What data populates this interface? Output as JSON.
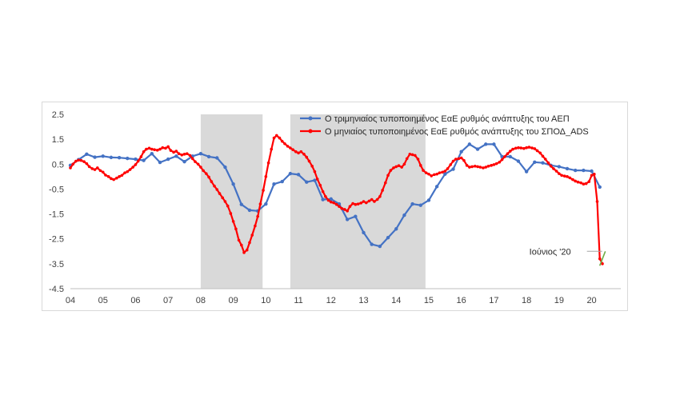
{
  "chart_data": {
    "type": "line",
    "title": "",
    "xlabel": "",
    "ylabel": "",
    "x_tick_labels": [
      "04",
      "05",
      "06",
      "07",
      "08",
      "09",
      "10",
      "11",
      "12",
      "13",
      "14",
      "15",
      "16",
      "17",
      "18",
      "19",
      "20"
    ],
    "y_tick_labels": [
      "2.5",
      "1.5",
      "0.5",
      "-0.5",
      "-1.5",
      "-2.5",
      "-3.5",
      "-4.5"
    ],
    "ylim": [
      -4.5,
      2.5
    ],
    "xlim": [
      2004.0,
      2020.6
    ],
    "grid": false,
    "legend_position": "top-right",
    "shaded_periods": [
      [
        2008.0,
        2009.9
      ],
      [
        2010.75,
        2014.9
      ]
    ],
    "shade_color": "#d9d9d9",
    "series": [
      {
        "name": "Ο τριμηνιαίος τυποποιημένος ΕαΕ ρυθμός ανάπτυξης του ΑΕΠ",
        "color": "#4472c4",
        "points": [
          [
            2004.0,
            0.45
          ],
          [
            2004.25,
            0.68
          ],
          [
            2004.5,
            0.9
          ],
          [
            2004.75,
            0.78
          ],
          [
            2005.0,
            0.82
          ],
          [
            2005.25,
            0.77
          ],
          [
            2005.5,
            0.76
          ],
          [
            2005.75,
            0.73
          ],
          [
            2006.0,
            0.7
          ],
          [
            2006.25,
            0.65
          ],
          [
            2006.5,
            0.92
          ],
          [
            2006.75,
            0.57
          ],
          [
            2007.0,
            0.7
          ],
          [
            2007.25,
            0.82
          ],
          [
            2007.5,
            0.6
          ],
          [
            2007.75,
            0.82
          ],
          [
            2008.0,
            0.92
          ],
          [
            2008.25,
            0.8
          ],
          [
            2008.5,
            0.75
          ],
          [
            2008.75,
            0.38
          ],
          [
            2009.0,
            -0.3
          ],
          [
            2009.25,
            -1.12
          ],
          [
            2009.5,
            -1.35
          ],
          [
            2009.75,
            -1.38
          ],
          [
            2010.0,
            -1.1
          ],
          [
            2010.25,
            -0.3
          ],
          [
            2010.5,
            -0.2
          ],
          [
            2010.75,
            0.12
          ],
          [
            2011.0,
            0.08
          ],
          [
            2011.25,
            -0.22
          ],
          [
            2011.5,
            -0.15
          ],
          [
            2011.75,
            -0.92
          ],
          [
            2012.0,
            -0.9
          ],
          [
            2012.25,
            -1.1
          ],
          [
            2012.5,
            -1.72
          ],
          [
            2012.75,
            -1.6
          ],
          [
            2013.0,
            -2.25
          ],
          [
            2013.25,
            -2.72
          ],
          [
            2013.5,
            -2.8
          ],
          [
            2013.75,
            -2.45
          ],
          [
            2014.0,
            -2.1
          ],
          [
            2014.25,
            -1.55
          ],
          [
            2014.5,
            -1.1
          ],
          [
            2014.75,
            -1.15
          ],
          [
            2015.0,
            -0.95
          ],
          [
            2015.25,
            -0.4
          ],
          [
            2015.5,
            0.1
          ],
          [
            2015.75,
            0.3
          ],
          [
            2016.0,
            1.0
          ],
          [
            2016.25,
            1.3
          ],
          [
            2016.5,
            1.1
          ],
          [
            2016.75,
            1.3
          ],
          [
            2017.0,
            1.3
          ],
          [
            2017.25,
            0.8
          ],
          [
            2017.5,
            0.8
          ],
          [
            2017.75,
            0.62
          ],
          [
            2018.0,
            0.2
          ],
          [
            2018.25,
            0.58
          ],
          [
            2018.5,
            0.55
          ],
          [
            2018.75,
            0.45
          ],
          [
            2019.0,
            0.4
          ],
          [
            2019.25,
            0.32
          ],
          [
            2019.5,
            0.25
          ],
          [
            2019.75,
            0.25
          ],
          [
            2020.0,
            0.22
          ],
          [
            2020.25,
            -0.42
          ]
        ]
      },
      {
        "name": "Ο μηνιαίος τυποποιημένος ΕαΕ ρυθμός ανάπτυξης του ΣΠΟΔ_ADS",
        "color": "#ff0000",
        "points": [
          [
            2004.0,
            0.35
          ],
          [
            2004.08,
            0.5
          ],
          [
            2004.17,
            0.62
          ],
          [
            2004.25,
            0.66
          ],
          [
            2004.33,
            0.65
          ],
          [
            2004.42,
            0.6
          ],
          [
            2004.5,
            0.52
          ],
          [
            2004.58,
            0.4
          ],
          [
            2004.67,
            0.32
          ],
          [
            2004.75,
            0.28
          ],
          [
            2004.83,
            0.35
          ],
          [
            2004.92,
            0.24
          ],
          [
            2005.0,
            0.18
          ],
          [
            2005.08,
            0.06
          ],
          [
            2005.17,
            0.0
          ],
          [
            2005.25,
            -0.08
          ],
          [
            2005.33,
            -0.12
          ],
          [
            2005.42,
            -0.06
          ],
          [
            2005.5,
            0.0
          ],
          [
            2005.58,
            0.05
          ],
          [
            2005.67,
            0.15
          ],
          [
            2005.75,
            0.2
          ],
          [
            2005.83,
            0.28
          ],
          [
            2005.92,
            0.38
          ],
          [
            2006.0,
            0.48
          ],
          [
            2006.08,
            0.62
          ],
          [
            2006.17,
            0.8
          ],
          [
            2006.25,
            1.0
          ],
          [
            2006.33,
            1.1
          ],
          [
            2006.42,
            1.14
          ],
          [
            2006.5,
            1.1
          ],
          [
            2006.58,
            1.08
          ],
          [
            2006.67,
            1.06
          ],
          [
            2006.75,
            1.1
          ],
          [
            2006.83,
            1.16
          ],
          [
            2006.92,
            1.14
          ],
          [
            2007.0,
            1.2
          ],
          [
            2007.08,
            1.05
          ],
          [
            2007.17,
            0.98
          ],
          [
            2007.25,
            1.02
          ],
          [
            2007.33,
            0.92
          ],
          [
            2007.42,
            0.87
          ],
          [
            2007.5,
            0.9
          ],
          [
            2007.58,
            0.92
          ],
          [
            2007.67,
            0.85
          ],
          [
            2007.75,
            0.72
          ],
          [
            2007.83,
            0.6
          ],
          [
            2007.92,
            0.5
          ],
          [
            2008.0,
            0.38
          ],
          [
            2008.08,
            0.24
          ],
          [
            2008.17,
            0.12
          ],
          [
            2008.25,
            -0.02
          ],
          [
            2008.33,
            -0.2
          ],
          [
            2008.42,
            -0.38
          ],
          [
            2008.5,
            -0.52
          ],
          [
            2008.58,
            -0.68
          ],
          [
            2008.67,
            -0.85
          ],
          [
            2008.75,
            -1.0
          ],
          [
            2008.83,
            -1.18
          ],
          [
            2008.92,
            -1.48
          ],
          [
            2009.0,
            -1.8
          ],
          [
            2009.08,
            -2.1
          ],
          [
            2009.17,
            -2.55
          ],
          [
            2009.25,
            -2.75
          ],
          [
            2009.33,
            -3.05
          ],
          [
            2009.42,
            -2.95
          ],
          [
            2009.5,
            -2.65
          ],
          [
            2009.58,
            -2.35
          ],
          [
            2009.67,
            -1.98
          ],
          [
            2009.75,
            -1.6
          ],
          [
            2009.83,
            -1.1
          ],
          [
            2009.92,
            -0.55
          ],
          [
            2010.0,
            0.0
          ],
          [
            2010.08,
            0.55
          ],
          [
            2010.17,
            1.1
          ],
          [
            2010.25,
            1.55
          ],
          [
            2010.33,
            1.65
          ],
          [
            2010.42,
            1.55
          ],
          [
            2010.5,
            1.42
          ],
          [
            2010.58,
            1.32
          ],
          [
            2010.67,
            1.22
          ],
          [
            2010.75,
            1.15
          ],
          [
            2010.83,
            1.08
          ],
          [
            2010.92,
            1.0
          ],
          [
            2011.0,
            0.95
          ],
          [
            2011.08,
            1.0
          ],
          [
            2011.17,
            0.9
          ],
          [
            2011.25,
            0.78
          ],
          [
            2011.33,
            0.62
          ],
          [
            2011.42,
            0.42
          ],
          [
            2011.5,
            0.2
          ],
          [
            2011.58,
            -0.1
          ],
          [
            2011.67,
            -0.35
          ],
          [
            2011.75,
            -0.6
          ],
          [
            2011.83,
            -0.8
          ],
          [
            2011.92,
            -0.95
          ],
          [
            2012.0,
            -1.02
          ],
          [
            2012.08,
            -1.05
          ],
          [
            2012.17,
            -1.12
          ],
          [
            2012.25,
            -1.2
          ],
          [
            2012.33,
            -1.28
          ],
          [
            2012.42,
            -1.32
          ],
          [
            2012.5,
            -1.38
          ],
          [
            2012.58,
            -1.2
          ],
          [
            2012.67,
            -1.08
          ],
          [
            2012.75,
            -1.12
          ],
          [
            2012.83,
            -1.1
          ],
          [
            2012.92,
            -1.06
          ],
          [
            2013.0,
            -1.0
          ],
          [
            2013.08,
            -1.05
          ],
          [
            2013.17,
            -0.98
          ],
          [
            2013.25,
            -0.92
          ],
          [
            2013.33,
            -1.0
          ],
          [
            2013.42,
            -0.92
          ],
          [
            2013.5,
            -0.8
          ],
          [
            2013.58,
            -0.55
          ],
          [
            2013.67,
            -0.25
          ],
          [
            2013.75,
            0.05
          ],
          [
            2013.83,
            0.25
          ],
          [
            2013.92,
            0.35
          ],
          [
            2014.0,
            0.4
          ],
          [
            2014.08,
            0.44
          ],
          [
            2014.17,
            0.38
          ],
          [
            2014.25,
            0.5
          ],
          [
            2014.33,
            0.72
          ],
          [
            2014.42,
            0.9
          ],
          [
            2014.5,
            0.88
          ],
          [
            2014.58,
            0.85
          ],
          [
            2014.67,
            0.7
          ],
          [
            2014.75,
            0.45
          ],
          [
            2014.83,
            0.25
          ],
          [
            2014.92,
            0.15
          ],
          [
            2015.0,
            0.1
          ],
          [
            2015.08,
            0.03
          ],
          [
            2015.17,
            0.08
          ],
          [
            2015.25,
            0.1
          ],
          [
            2015.33,
            0.15
          ],
          [
            2015.42,
            0.18
          ],
          [
            2015.5,
            0.22
          ],
          [
            2015.58,
            0.32
          ],
          [
            2015.67,
            0.48
          ],
          [
            2015.75,
            0.62
          ],
          [
            2015.83,
            0.7
          ],
          [
            2015.92,
            0.72
          ],
          [
            2016.0,
            0.75
          ],
          [
            2016.08,
            0.65
          ],
          [
            2016.17,
            0.45
          ],
          [
            2016.25,
            0.38
          ],
          [
            2016.33,
            0.4
          ],
          [
            2016.42,
            0.42
          ],
          [
            2016.5,
            0.4
          ],
          [
            2016.58,
            0.38
          ],
          [
            2016.67,
            0.35
          ],
          [
            2016.75,
            0.38
          ],
          [
            2016.83,
            0.42
          ],
          [
            2016.92,
            0.45
          ],
          [
            2017.0,
            0.48
          ],
          [
            2017.08,
            0.52
          ],
          [
            2017.17,
            0.58
          ],
          [
            2017.25,
            0.68
          ],
          [
            2017.33,
            0.8
          ],
          [
            2017.42,
            0.92
          ],
          [
            2017.5,
            1.02
          ],
          [
            2017.58,
            1.1
          ],
          [
            2017.67,
            1.14
          ],
          [
            2017.75,
            1.16
          ],
          [
            2017.83,
            1.15
          ],
          [
            2017.92,
            1.13
          ],
          [
            2018.0,
            1.16
          ],
          [
            2018.08,
            1.18
          ],
          [
            2018.17,
            1.15
          ],
          [
            2018.25,
            1.12
          ],
          [
            2018.33,
            1.04
          ],
          [
            2018.42,
            0.95
          ],
          [
            2018.5,
            0.82
          ],
          [
            2018.58,
            0.7
          ],
          [
            2018.67,
            0.55
          ],
          [
            2018.75,
            0.42
          ],
          [
            2018.83,
            0.32
          ],
          [
            2018.92,
            0.22
          ],
          [
            2019.0,
            0.12
          ],
          [
            2019.08,
            0.05
          ],
          [
            2019.17,
            0.02
          ],
          [
            2019.25,
            0.0
          ],
          [
            2019.33,
            -0.05
          ],
          [
            2019.42,
            -0.12
          ],
          [
            2019.5,
            -0.18
          ],
          [
            2019.58,
            -0.22
          ],
          [
            2019.67,
            -0.25
          ],
          [
            2019.75,
            -0.3
          ],
          [
            2019.83,
            -0.28
          ],
          [
            2019.92,
            -0.2
          ],
          [
            2020.0,
            0.05
          ],
          [
            2020.08,
            0.1
          ],
          [
            2020.17,
            -1.0
          ],
          [
            2020.25,
            -3.3
          ],
          [
            2020.33,
            -3.5
          ]
        ]
      }
    ],
    "annotations": [
      {
        "text": "Ιούνιος '20",
        "x": 2020.42,
        "y": -3.0,
        "color": "#70ad47"
      }
    ]
  }
}
